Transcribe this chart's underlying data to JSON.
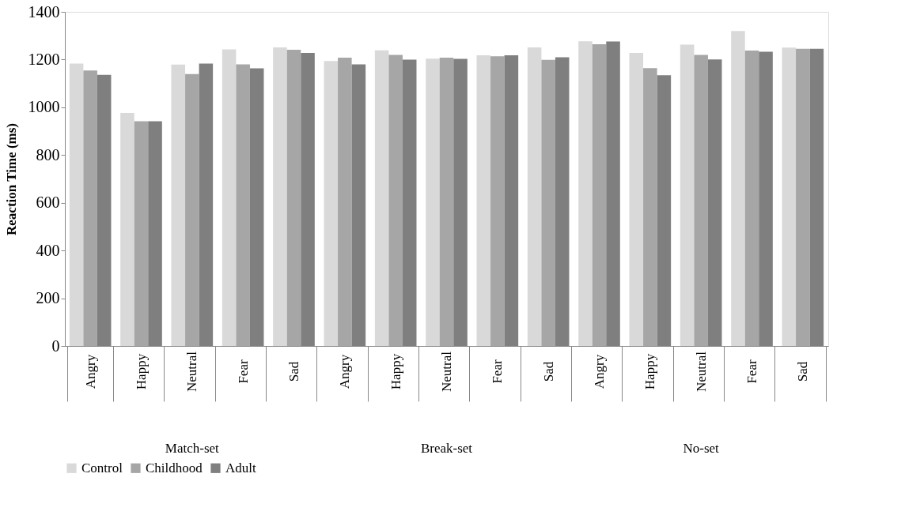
{
  "chart_data": {
    "type": "bar",
    "ylabel": "Reaction Time (ms)",
    "categories": [
      "Angry",
      "Happy",
      "Neutral",
      "Fear",
      "Sad",
      "Angry",
      "Happy",
      "Neutral",
      "Fear",
      "Sad",
      "Angry",
      "Happy",
      "Neutral",
      "Fear",
      "Sad"
    ],
    "series": [
      {
        "name": "Control",
        "color": "#d9d9d9",
        "values": [
          1183,
          976,
          1179,
          1243,
          1251,
          1194,
          1239,
          1204,
          1218,
          1251,
          1277,
          1228,
          1263,
          1320,
          1250
        ]
      },
      {
        "name": "Childhood",
        "color": "#a6a6a6",
        "values": [
          1154,
          942,
          1139,
          1180,
          1241,
          1208,
          1220,
          1208,
          1214,
          1199,
          1264,
          1164,
          1220,
          1238,
          1245
        ]
      },
      {
        "name": "Adult",
        "color": "#7f7f7f",
        "values": [
          1136,
          942,
          1183,
          1163,
          1228,
          1180,
          1200,
          1203,
          1218,
          1210,
          1276,
          1134,
          1201,
          1233,
          1245
        ]
      }
    ],
    "annotations": [
      "Match-set",
      "Break-set",
      "No-set"
    ],
    "ylim": [
      0,
      1400
    ],
    "yticks": [
      0,
      200,
      400,
      600,
      800,
      1000,
      1200,
      1400
    ],
    "grid": false,
    "legend": "bottom"
  }
}
